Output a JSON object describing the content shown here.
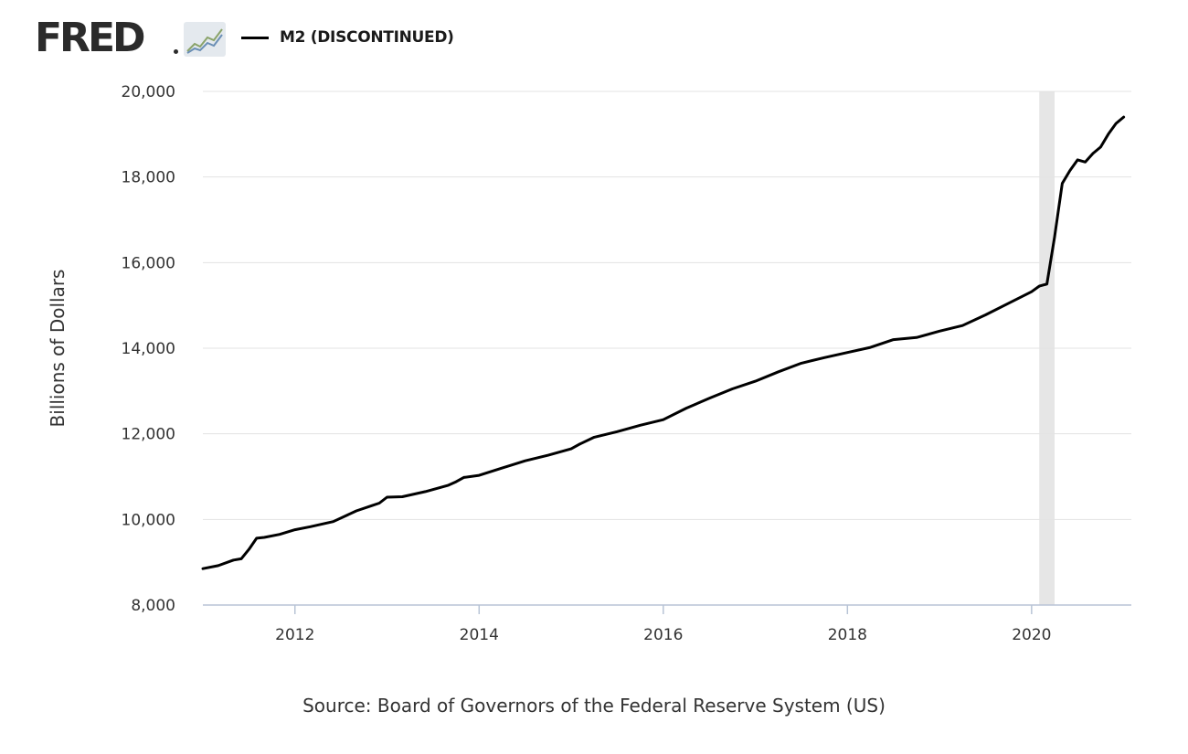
{
  "header": {
    "logo_text": "FRED",
    "logo_icon": "line-chart-icon",
    "legend_label": "M2 (DISCONTINUED)",
    "legend_color": "#000000"
  },
  "chart_data": {
    "type": "line",
    "title": "",
    "xlabel": "",
    "ylabel": "Billions of Dollars",
    "x_ticks": [
      "2012",
      "2014",
      "2016",
      "2018",
      "2020"
    ],
    "y_ticks": [
      "8,000",
      "10,000",
      "12,000",
      "14,000",
      "16,000",
      "18,000",
      "20,000"
    ],
    "xlim": [
      "2011-01",
      "2021-02"
    ],
    "ylim": [
      8000,
      20000
    ],
    "grid": "horizontal",
    "recession_shading": {
      "start": "2020-02",
      "end": "2020-04",
      "color": "#e6e6e6"
    },
    "series": [
      {
        "name": "M2 (DISCONTINUED)",
        "color": "#000000",
        "x": [
          "2011-01",
          "2011-03",
          "2011-05",
          "2011-06",
          "2011-07",
          "2011-08",
          "2011-09",
          "2011-11",
          "2012-01",
          "2012-03",
          "2012-06",
          "2012-09",
          "2012-11",
          "2012-12",
          "2013-01",
          "2013-03",
          "2013-06",
          "2013-09",
          "2013-10",
          "2013-11",
          "2014-01",
          "2014-04",
          "2014-07",
          "2014-10",
          "2015-01",
          "2015-02",
          "2015-04",
          "2015-07",
          "2015-10",
          "2016-01",
          "2016-04",
          "2016-07",
          "2016-10",
          "2017-01",
          "2017-04",
          "2017-07",
          "2017-10",
          "2018-01",
          "2018-04",
          "2018-07",
          "2018-10",
          "2019-01",
          "2019-04",
          "2019-07",
          "2019-10",
          "2020-01",
          "2020-02",
          "2020-03",
          "2020-04",
          "2020-05",
          "2020-06",
          "2020-07",
          "2020-08",
          "2020-09",
          "2020-10",
          "2020-11",
          "2020-12",
          "2021-01"
        ],
        "values": [
          8850,
          8920,
          9050,
          9080,
          9300,
          9560,
          9580,
          9650,
          9760,
          9830,
          9950,
          10200,
          10320,
          10380,
          10520,
          10530,
          10650,
          10800,
          10880,
          10980,
          11030,
          11200,
          11370,
          11500,
          11650,
          11750,
          11920,
          12050,
          12200,
          12330,
          12600,
          12830,
          13050,
          13230,
          13450,
          13650,
          13780,
          13900,
          14020,
          14200,
          14250,
          14400,
          14530,
          14780,
          15050,
          15320,
          15450,
          15500,
          16600,
          17850,
          18150,
          18400,
          18350,
          18550,
          18700,
          19000,
          19250,
          19400
        ]
      }
    ]
  },
  "footer": {
    "source": "Source: Board of Governors of the Federal Reserve System (US)"
  }
}
